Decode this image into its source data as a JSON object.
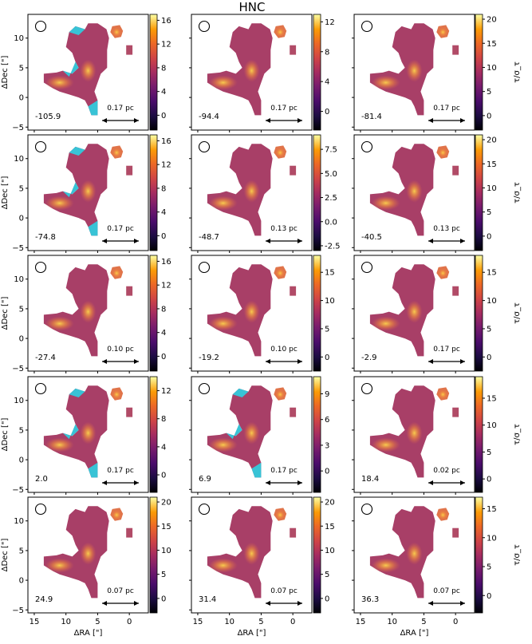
{
  "title": "HNC",
  "chart_data": {
    "type": "heatmap",
    "title": "HNC",
    "xlabel": "ΔRA [\"]",
    "ylabel": "ΔDec [\"]",
    "colorbar_label": "τ/σ_τ",
    "colormap": "inferno",
    "masked_color": "#38c3d6",
    "x_ticks": [
      "15",
      "10",
      "5",
      "0"
    ],
    "y_ticks": [
      "−5",
      "0",
      "5",
      "10"
    ],
    "xlim": [
      16,
      -3
    ],
    "ylim": [
      -5.5,
      14
    ],
    "panels": [
      {
        "velocity": "-105.9",
        "scale_bar": "0.17 pc",
        "cbar_ticks": [
          "0",
          "4",
          "8",
          "12",
          "16"
        ],
        "cbar_range": [
          -2.5,
          17
        ],
        "masked": true
      },
      {
        "velocity": "-94.4",
        "scale_bar": "0.17 pc",
        "cbar_ticks": [
          "0",
          "4",
          "8",
          "12"
        ],
        "cbar_range": [
          -2.5,
          13
        ],
        "masked": false
      },
      {
        "velocity": "-81.4",
        "scale_bar": "0.17 pc",
        "cbar_ticks": [
          "0",
          "5",
          "10",
          "15",
          "20"
        ],
        "cbar_range": [
          -3,
          21
        ],
        "masked": false
      },
      {
        "velocity": "-74.8",
        "scale_bar": "0.17 pc",
        "cbar_ticks": [
          "0",
          "4",
          "8",
          "12",
          "16"
        ],
        "cbar_range": [
          -2.5,
          17
        ],
        "masked": true
      },
      {
        "velocity": "-48.7",
        "scale_bar": "0.13 pc",
        "cbar_ticks": [
          "-2.5",
          "0.0",
          "2.5",
          "5.0",
          "7.5"
        ],
        "cbar_range": [
          -3,
          9
        ],
        "masked": false
      },
      {
        "velocity": "-40.5",
        "scale_bar": "0.13 pc",
        "cbar_ticks": [
          "0",
          "5",
          "10",
          "15",
          "20"
        ],
        "cbar_range": [
          -3,
          21
        ],
        "masked": false
      },
      {
        "velocity": "-27.4",
        "scale_bar": "0.10 pc",
        "cbar_ticks": [
          "0",
          "4",
          "8",
          "12",
          "16"
        ],
        "cbar_range": [
          -2.5,
          17
        ],
        "masked": false
      },
      {
        "velocity": "-19.2",
        "scale_bar": "0.10 pc",
        "cbar_ticks": [
          "0",
          "5",
          "10",
          "15"
        ],
        "cbar_range": [
          -2.5,
          18
        ],
        "masked": false
      },
      {
        "velocity": "-2.9",
        "scale_bar": "0.17 pc",
        "cbar_ticks": [
          "0",
          "5",
          "10",
          "15"
        ],
        "cbar_range": [
          -2.5,
          18
        ],
        "masked": false
      },
      {
        "velocity": "2.0",
        "scale_bar": "0.17 pc",
        "cbar_ticks": [
          "0",
          "4",
          "8",
          "12"
        ],
        "cbar_range": [
          -2.5,
          14
        ],
        "masked": true
      },
      {
        "velocity": "6.9",
        "scale_bar": "0.17 pc",
        "cbar_ticks": [
          "0",
          "3",
          "6",
          "9"
        ],
        "cbar_range": [
          -2.5,
          11
        ],
        "masked": true
      },
      {
        "velocity": "18.4",
        "scale_bar": "0.02 pc",
        "cbar_ticks": [
          "0",
          "5",
          "10",
          "15"
        ],
        "cbar_range": [
          -2.5,
          19
        ],
        "masked": false
      },
      {
        "velocity": "24.9",
        "scale_bar": "0.07 pc",
        "cbar_ticks": [
          "0",
          "5",
          "10",
          "15",
          "20"
        ],
        "cbar_range": [
          -3,
          21
        ],
        "masked": false
      },
      {
        "velocity": "31.4",
        "scale_bar": "0.07 pc",
        "cbar_ticks": [
          "0",
          "5",
          "10",
          "15",
          "20"
        ],
        "cbar_range": [
          -3,
          21
        ],
        "masked": false
      },
      {
        "velocity": "36.3",
        "scale_bar": "0.07 pc",
        "cbar_ticks": [
          "0",
          "5",
          "10",
          "15"
        ],
        "cbar_range": [
          -3,
          17
        ],
        "masked": false
      }
    ]
  }
}
